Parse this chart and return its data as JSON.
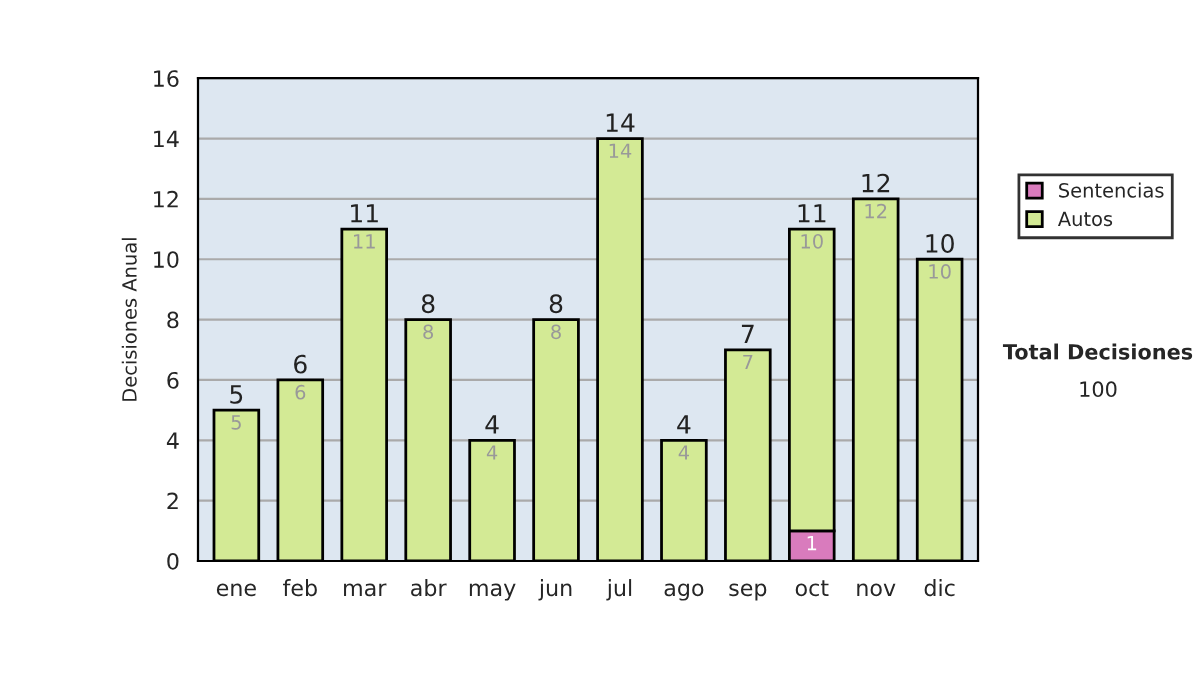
{
  "chart_data": {
    "type": "bar",
    "stacked": true,
    "ylabel": "Decisiones Anual",
    "categories": [
      "ene",
      "feb",
      "mar",
      "abr",
      "may",
      "jun",
      "jul",
      "ago",
      "sep",
      "oct",
      "nov",
      "dic"
    ],
    "series": [
      {
        "name": "Sentencias",
        "color": "#d97bbd",
        "values": [
          null,
          null,
          null,
          null,
          null,
          null,
          null,
          null,
          null,
          1,
          null,
          null
        ],
        "value_labels": [
          null,
          null,
          null,
          null,
          null,
          null,
          null,
          null,
          null,
          "1",
          null,
          null
        ]
      },
      {
        "name": "Autos",
        "color": "#d3ea95",
        "values": [
          5,
          6,
          11,
          8,
          4,
          8,
          14,
          4,
          7,
          10,
          12,
          10
        ],
        "value_labels": [
          "5",
          "6",
          "11",
          "8",
          "4",
          "8",
          "14",
          "4",
          "7",
          "10",
          "12",
          "10"
        ]
      }
    ],
    "totals": [
      "5",
      "6",
      "11",
      "8",
      "4",
      "8",
      "14",
      "4",
      "7",
      "11",
      "12",
      "10"
    ],
    "ylim": [
      0,
      16
    ],
    "yticks": [
      0,
      2,
      4,
      6,
      8,
      10,
      12,
      14,
      16
    ],
    "grid": "y",
    "legend": "right",
    "annotations": [
      "Total Decisiones",
      "100"
    ]
  }
}
